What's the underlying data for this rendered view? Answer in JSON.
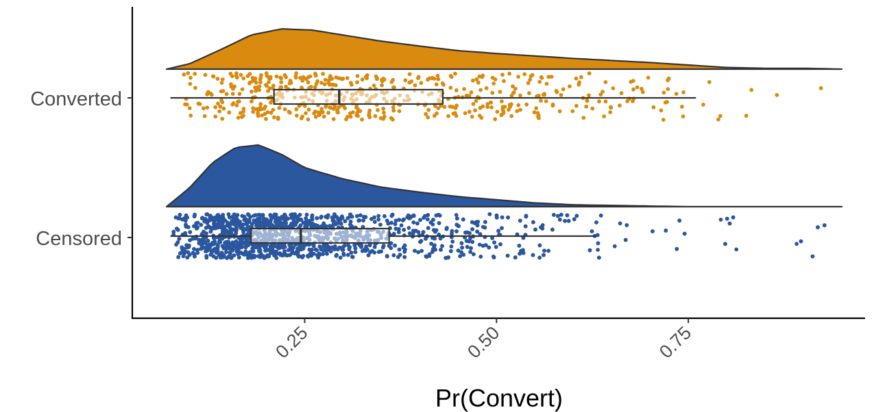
{
  "chart_data": {
    "type": "raincloud",
    "title": "",
    "xlabel": "Pr(Convert)",
    "ylabel": "",
    "xlim": [
      0.07,
      0.95
    ],
    "xticks": [
      0.25,
      0.5,
      0.75
    ],
    "xtick_labels": [
      "0.25",
      "0.50",
      "0.75"
    ],
    "xtick_rotation_deg": 45,
    "grid": false,
    "legend": "none",
    "categories": [
      "Converted",
      "Censored"
    ],
    "series": [
      {
        "name": "Converted",
        "color": "#D98B10",
        "box": {
          "whisker_low": 0.075,
          "q1": 0.21,
          "median": 0.295,
          "q3": 0.43,
          "whisker_high": 0.76
        },
        "density": {
          "x": [
            0.07,
            0.1,
            0.14,
            0.18,
            0.22,
            0.26,
            0.3,
            0.35,
            0.4,
            0.45,
            0.5,
            0.55,
            0.6,
            0.65,
            0.7,
            0.75,
            0.8,
            0.85,
            0.9,
            0.95
          ],
          "y": [
            0.0,
            0.13,
            0.47,
            0.83,
            0.98,
            0.95,
            0.83,
            0.68,
            0.56,
            0.45,
            0.38,
            0.32,
            0.26,
            0.21,
            0.16,
            0.1,
            0.04,
            0.02,
            0.02,
            0.0
          ]
        },
        "points": {
          "n": 560,
          "range": [
            0.07,
            0.95
          ]
        }
      },
      {
        "name": "Censored",
        "color": "#2B579E",
        "box": {
          "whisker_low": 0.075,
          "q1": 0.18,
          "median": 0.245,
          "q3": 0.36,
          "whisker_high": 0.63
        },
        "density": {
          "x": [
            0.07,
            0.1,
            0.13,
            0.16,
            0.19,
            0.22,
            0.25,
            0.3,
            0.35,
            0.4,
            0.45,
            0.5,
            0.55,
            0.6,
            0.65,
            0.7,
            0.75,
            0.8,
            0.85,
            0.9,
            0.95
          ],
          "y": [
            0.0,
            0.3,
            0.7,
            0.94,
            0.98,
            0.83,
            0.62,
            0.44,
            0.31,
            0.23,
            0.16,
            0.11,
            0.06,
            0.03,
            0.02,
            0.01,
            0.0,
            0.0,
            0.0,
            0.0,
            0.0
          ]
        },
        "points": {
          "n": 2300,
          "range": [
            0.07,
            0.95
          ]
        }
      }
    ]
  }
}
